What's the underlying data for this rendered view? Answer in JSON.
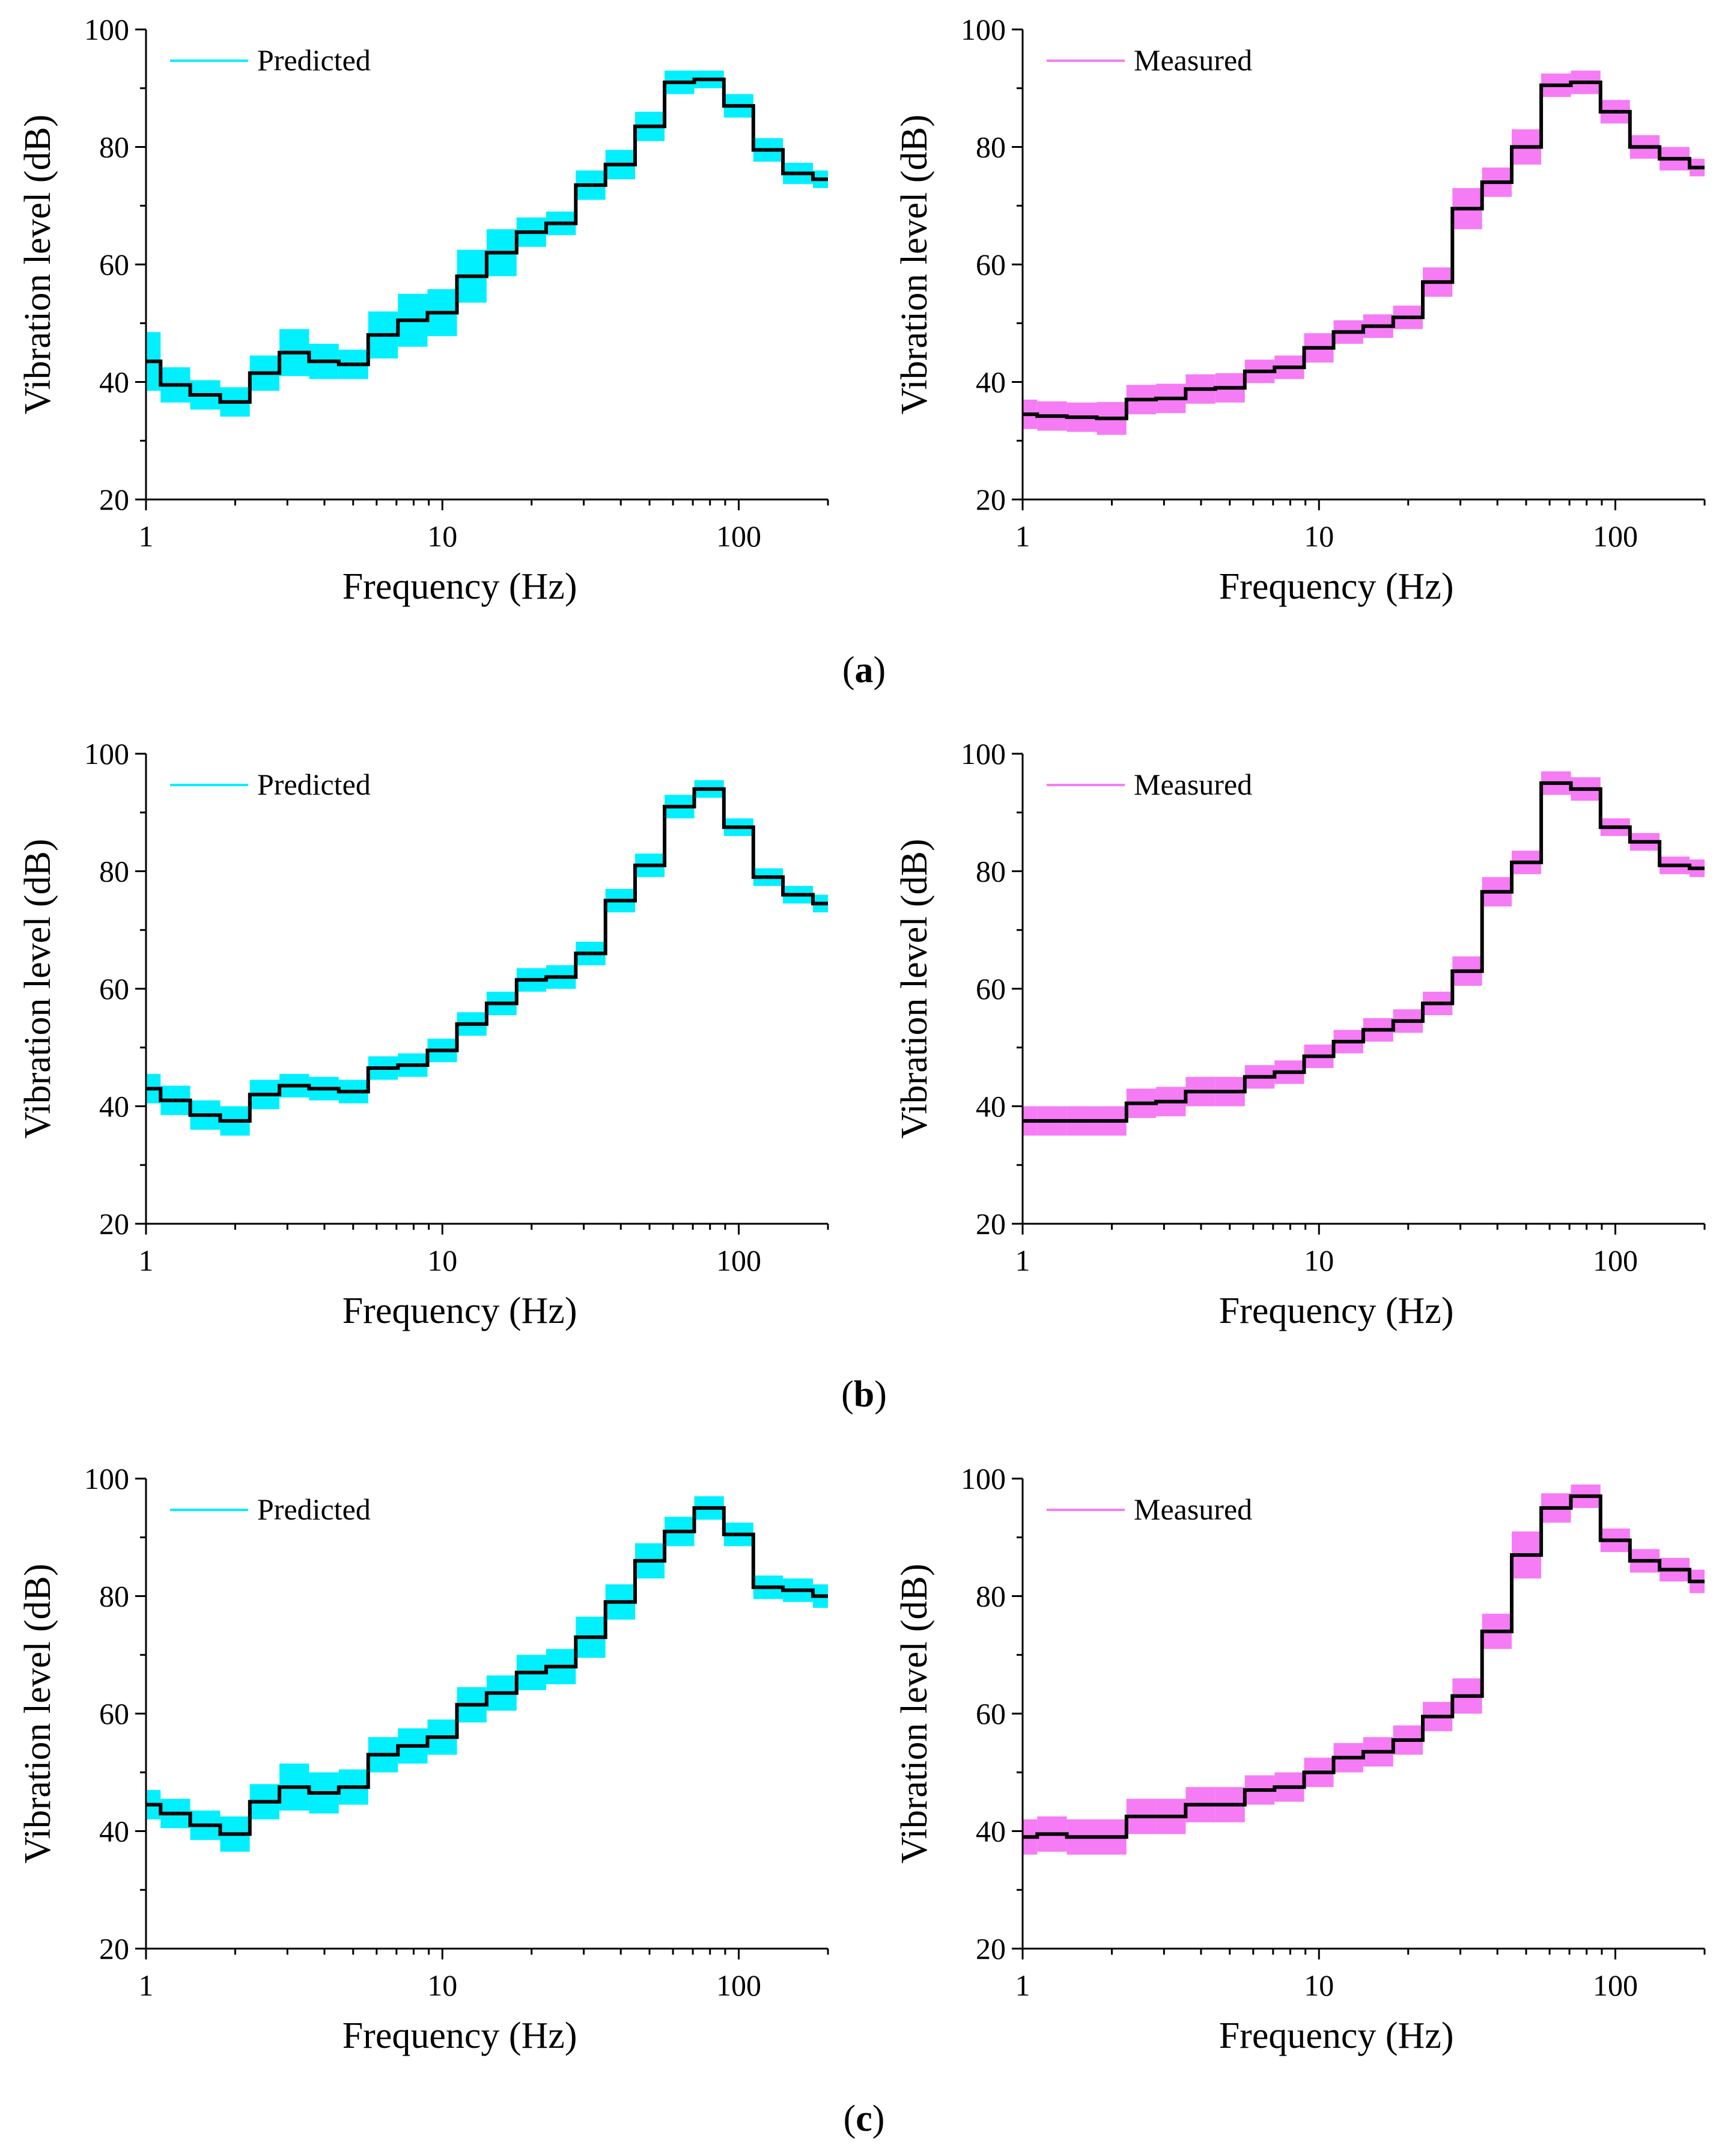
{
  "captions": [
    {
      "open": "(",
      "letter": "a",
      "close": ")"
    },
    {
      "open": "(",
      "letter": "b",
      "close": ")"
    },
    {
      "open": "(",
      "letter": "c",
      "close": ")"
    }
  ],
  "colors": {
    "predicted_band": "#00f0ff",
    "measured_band": "#f57cf5",
    "line": "#000000"
  },
  "chart_data": [
    {
      "type": "line",
      "subtype": "step-with-band",
      "panel": "a-left",
      "legend": "Predicted",
      "legend_position": "top-left",
      "xlabel": "Frequency (Hz)",
      "ylabel": "Vibration level (dB)",
      "xscale": "log",
      "xlim": [
        1,
        200
      ],
      "ylim": [
        20,
        100
      ],
      "xticks": [
        "1",
        "10",
        "100"
      ],
      "yticks": [
        "20",
        "40",
        "60",
        "80",
        "100"
      ],
      "x_bin_edges": [
        1,
        1.12,
        1.41,
        1.78,
        2.24,
        2.82,
        3.55,
        4.47,
        5.62,
        7.08,
        8.91,
        11.2,
        14.1,
        17.8,
        22.4,
        28.2,
        35.5,
        44.7,
        56.2,
        70.8,
        89.1,
        112,
        141,
        178,
        200
      ],
      "y": [
        43.5,
        39.5,
        37.8,
        36.6,
        41.5,
        45.0,
        43.5,
        43.0,
        48.0,
        50.5,
        51.8,
        58.0,
        62.0,
        65.5,
        67.0,
        73.5,
        77.0,
        83.5,
        91.0,
        91.5,
        87.0,
        79.5,
        75.5,
        74.5
      ],
      "band_halfwidth": [
        5.0,
        3.0,
        2.5,
        2.5,
        3.0,
        4.0,
        3.0,
        2.5,
        4.0,
        4.5,
        4.0,
        4.5,
        4.0,
        2.5,
        2.0,
        2.5,
        2.5,
        2.5,
        2.0,
        1.5,
        2.0,
        2.0,
        1.8,
        1.5
      ]
    },
    {
      "type": "line",
      "subtype": "step-with-band",
      "panel": "a-right",
      "legend": "Measured",
      "legend_position": "top-left",
      "xlabel": "Frequency (Hz)",
      "ylabel": "Vibration level (dB)",
      "xscale": "log",
      "xlim": [
        1,
        200
      ],
      "ylim": [
        20,
        100
      ],
      "xticks": [
        "1",
        "10",
        "100"
      ],
      "yticks": [
        "20",
        "40",
        "60",
        "80",
        "100"
      ],
      "x_bin_edges": [
        1,
        1.12,
        1.41,
        1.78,
        2.24,
        2.82,
        3.55,
        4.47,
        5.62,
        7.08,
        8.91,
        11.2,
        14.1,
        17.8,
        22.4,
        28.2,
        35.5,
        44.7,
        56.2,
        70.8,
        89.1,
        112,
        141,
        178,
        200
      ],
      "y": [
        34.5,
        34.2,
        34.0,
        33.8,
        37.0,
        37.2,
        38.8,
        39.0,
        41.8,
        42.5,
        45.8,
        48.5,
        49.5,
        51.0,
        57.0,
        69.5,
        74.0,
        80.0,
        90.5,
        91.0,
        86.0,
        80.0,
        78.0,
        76.5
      ],
      "band_halfwidth": [
        2.5,
        2.5,
        2.5,
        2.8,
        2.5,
        2.5,
        2.5,
        2.5,
        2.0,
        2.0,
        2.5,
        2.0,
        2.0,
        2.0,
        2.5,
        3.5,
        2.5,
        3.0,
        2.0,
        2.0,
        2.0,
        2.0,
        2.0,
        1.5
      ]
    },
    {
      "type": "line",
      "subtype": "step-with-band",
      "panel": "b-left",
      "legend": "Predicted",
      "legend_position": "top-left",
      "xlabel": "Frequency (Hz)",
      "ylabel": "Vibration level (dB)",
      "xscale": "log",
      "xlim": [
        1,
        200
      ],
      "ylim": [
        20,
        100
      ],
      "xticks": [
        "1",
        "10",
        "100"
      ],
      "yticks": [
        "20",
        "40",
        "60",
        "80",
        "100"
      ],
      "x_bin_edges": [
        1,
        1.12,
        1.41,
        1.78,
        2.24,
        2.82,
        3.55,
        4.47,
        5.62,
        7.08,
        8.91,
        11.2,
        14.1,
        17.8,
        22.4,
        28.2,
        35.5,
        44.7,
        56.2,
        70.8,
        89.1,
        112,
        141,
        178,
        200
      ],
      "y": [
        43.0,
        41.0,
        38.5,
        37.5,
        42.0,
        43.5,
        43.0,
        42.5,
        46.5,
        47.0,
        49.5,
        54.0,
        57.5,
        61.5,
        62.0,
        66.0,
        75.0,
        81.0,
        91.0,
        94.0,
        87.5,
        79.0,
        76.0,
        74.5
      ],
      "band_halfwidth": [
        2.5,
        2.5,
        2.5,
        2.5,
        2.5,
        2.0,
        2.0,
        2.0,
        2.0,
        2.0,
        2.0,
        2.0,
        2.0,
        2.0,
        2.0,
        2.0,
        2.0,
        2.0,
        2.0,
        1.5,
        1.5,
        1.5,
        1.5,
        1.5
      ]
    },
    {
      "type": "line",
      "subtype": "step-with-band",
      "panel": "b-right",
      "legend": "Measured",
      "legend_position": "top-left",
      "xlabel": "Frequency (Hz)",
      "ylabel": "Vibration level (dB)",
      "xscale": "log",
      "xlim": [
        1,
        200
      ],
      "ylim": [
        20,
        100
      ],
      "xticks": [
        "1",
        "10",
        "100"
      ],
      "yticks": [
        "20",
        "40",
        "60",
        "80",
        "100"
      ],
      "x_bin_edges": [
        1,
        1.12,
        1.41,
        1.78,
        2.24,
        2.82,
        3.55,
        4.47,
        5.62,
        7.08,
        8.91,
        11.2,
        14.1,
        17.8,
        22.4,
        28.2,
        35.5,
        44.7,
        56.2,
        70.8,
        89.1,
        112,
        141,
        178,
        200
      ],
      "y": [
        37.5,
        37.5,
        37.5,
        37.5,
        40.5,
        40.8,
        42.5,
        42.5,
        45.0,
        45.8,
        48.5,
        51.0,
        53.0,
        54.5,
        57.5,
        63.0,
        76.5,
        81.5,
        95.0,
        94.0,
        87.5,
        85.0,
        81.0,
        80.5
      ],
      "band_halfwidth": [
        2.5,
        2.5,
        2.5,
        2.5,
        2.5,
        2.5,
        2.5,
        2.5,
        2.0,
        2.0,
        2.0,
        2.0,
        2.0,
        2.0,
        2.0,
        2.5,
        2.5,
        2.0,
        2.0,
        2.0,
        1.5,
        1.5,
        1.5,
        1.5
      ]
    },
    {
      "type": "line",
      "subtype": "step-with-band",
      "panel": "c-left",
      "legend": "Predicted",
      "legend_position": "top-left",
      "xlabel": "Frequency (Hz)",
      "ylabel": "Vibration level (dB)",
      "xscale": "log",
      "xlim": [
        1,
        200
      ],
      "ylim": [
        20,
        100
      ],
      "xticks": [
        "1",
        "10",
        "100"
      ],
      "yticks": [
        "20",
        "40",
        "60",
        "80",
        "100"
      ],
      "x_bin_edges": [
        1,
        1.12,
        1.41,
        1.78,
        2.24,
        2.82,
        3.55,
        4.47,
        5.62,
        7.08,
        8.91,
        11.2,
        14.1,
        17.8,
        22.4,
        28.2,
        35.5,
        44.7,
        56.2,
        70.8,
        89.1,
        112,
        141,
        178,
        200
      ],
      "y": [
        44.5,
        43.0,
        41.0,
        39.5,
        45.0,
        47.5,
        46.5,
        47.5,
        53.0,
        54.5,
        56.0,
        61.5,
        63.5,
        67.0,
        68.0,
        73.0,
        79.0,
        86.0,
        91.0,
        95.0,
        90.5,
        81.5,
        81.0,
        80.0
      ],
      "band_halfwidth": [
        2.5,
        2.5,
        2.5,
        3.0,
        3.0,
        4.0,
        3.5,
        3.0,
        3.0,
        3.0,
        3.0,
        3.0,
        3.0,
        3.0,
        3.0,
        3.5,
        3.0,
        3.0,
        2.5,
        2.0,
        2.0,
        2.0,
        2.0,
        2.0
      ]
    },
    {
      "type": "line",
      "subtype": "step-with-band",
      "panel": "c-right",
      "legend": "Measured",
      "legend_position": "top-left",
      "xlabel": "Frequency (Hz)",
      "ylabel": "Vibration level (dB)",
      "xscale": "log",
      "xlim": [
        1,
        200
      ],
      "ylim": [
        20,
        100
      ],
      "xticks": [
        "1",
        "10",
        "100"
      ],
      "yticks": [
        "20",
        "40",
        "60",
        "80",
        "100"
      ],
      "x_bin_edges": [
        1,
        1.12,
        1.41,
        1.78,
        2.24,
        2.82,
        3.55,
        4.47,
        5.62,
        7.08,
        8.91,
        11.2,
        14.1,
        17.8,
        22.4,
        28.2,
        35.5,
        44.7,
        56.2,
        70.8,
        89.1,
        112,
        141,
        178,
        200
      ],
      "y": [
        39.0,
        39.5,
        39.0,
        39.0,
        42.5,
        42.5,
        44.5,
        44.5,
        47.0,
        47.5,
        50.0,
        52.5,
        53.5,
        55.5,
        59.5,
        63.0,
        74.0,
        87.0,
        95.0,
        97.0,
        89.5,
        86.0,
        84.5,
        82.5
      ],
      "band_halfwidth": [
        3.0,
        3.0,
        3.0,
        3.0,
        3.0,
        3.0,
        3.0,
        3.0,
        2.5,
        2.5,
        2.5,
        2.5,
        2.5,
        2.5,
        2.5,
        3.0,
        3.0,
        4.0,
        2.5,
        2.0,
        2.0,
        2.0,
        2.0,
        2.0
      ]
    }
  ]
}
